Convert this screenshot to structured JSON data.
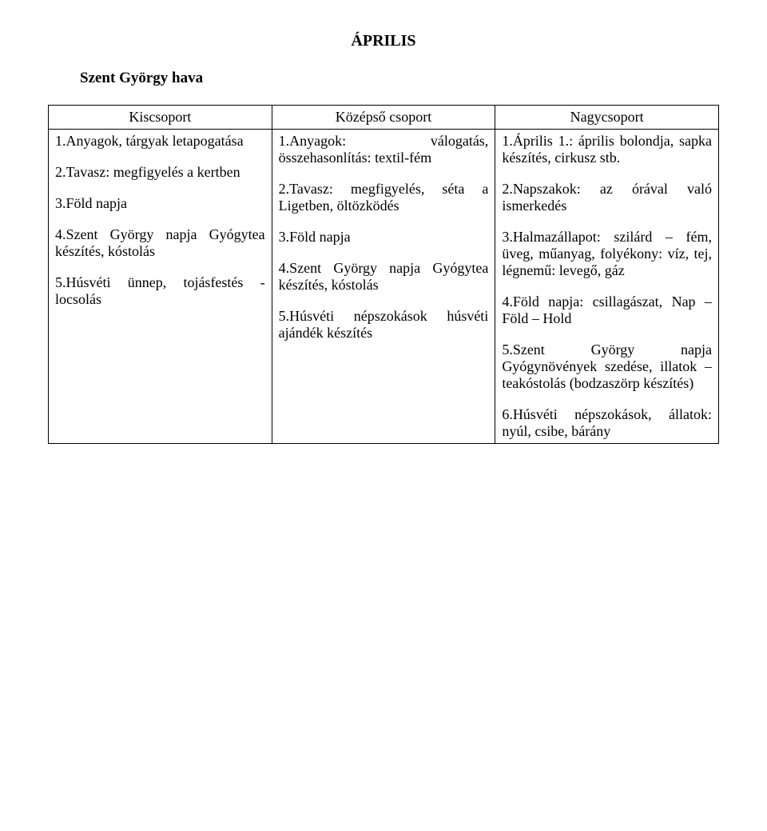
{
  "title": "ÁPRILIS",
  "subtitle": "Szent György hava",
  "table": {
    "headers": [
      "Kiscsoport",
      "Középső csoport",
      "Nagycsoport"
    ],
    "col1": {
      "p1": "1.Anyagok, tárgyak letapogatása",
      "p2": "2.Tavasz: megfigyelés a kertben",
      "p3": "3.Föld napja",
      "p4": "4.Szent György napja Gyógytea készítés, kóstolás",
      "p5": "5.Húsvéti ünnep, tojásfestés - locsolás"
    },
    "col2": {
      "p1": "1.Anyagok: válogatás, összehasonlítás: textil-fém",
      "p2": "2.Tavasz: megfigyelés, séta a Ligetben, öltözködés",
      "p3": "3.Föld napja",
      "p4": "4.Szent György napja Gyógytea készítés, kóstolás",
      "p5": "5.Húsvéti népszokások húsvéti ajándék készítés"
    },
    "col3": {
      "p1": "1.Április 1.: április bolondja, sapka készítés, cirkusz stb.",
      "p2": "2.Napszakok: az órával való ismerkedés",
      "p3": "3.Halmazállapot: szilárd – fém, üveg, műanyag, folyékony: víz, tej, légnemű: levegő, gáz",
      "p4": "4.Föld napja: csillagászat, Nap – Föld – Hold",
      "p5": "5.Szent György napja Gyógynövények szedése, illatok – teakóstolás (bodzaszörp készítés)",
      "p6": "6.Húsvéti népszokások, állatok: nyúl, csibe, bárány"
    }
  }
}
